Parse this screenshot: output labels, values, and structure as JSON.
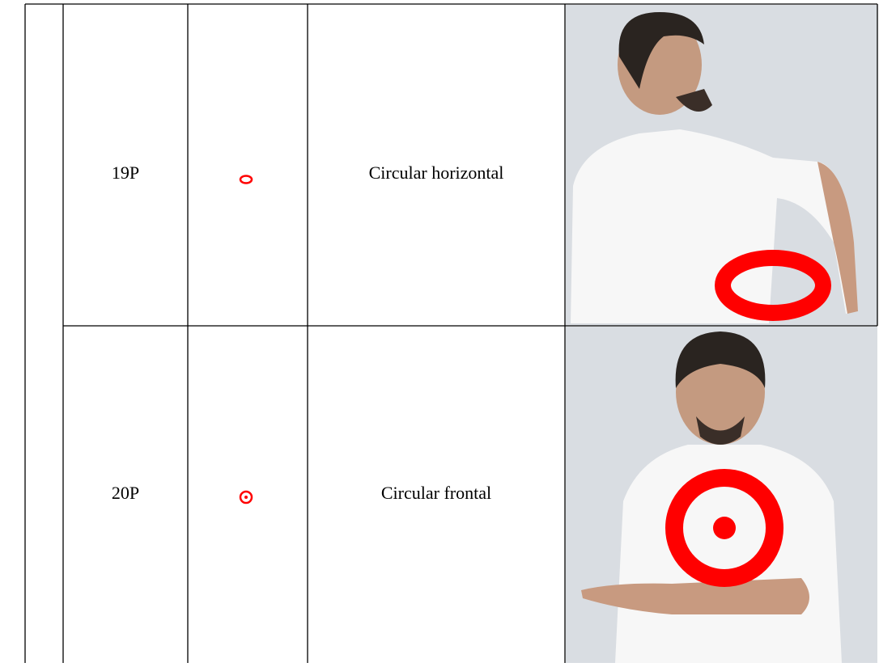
{
  "table": {
    "rows": [
      {
        "code": "19P",
        "description": "Circular horizontal"
      },
      {
        "code": "20P",
        "description": "Circular frontal"
      }
    ]
  }
}
